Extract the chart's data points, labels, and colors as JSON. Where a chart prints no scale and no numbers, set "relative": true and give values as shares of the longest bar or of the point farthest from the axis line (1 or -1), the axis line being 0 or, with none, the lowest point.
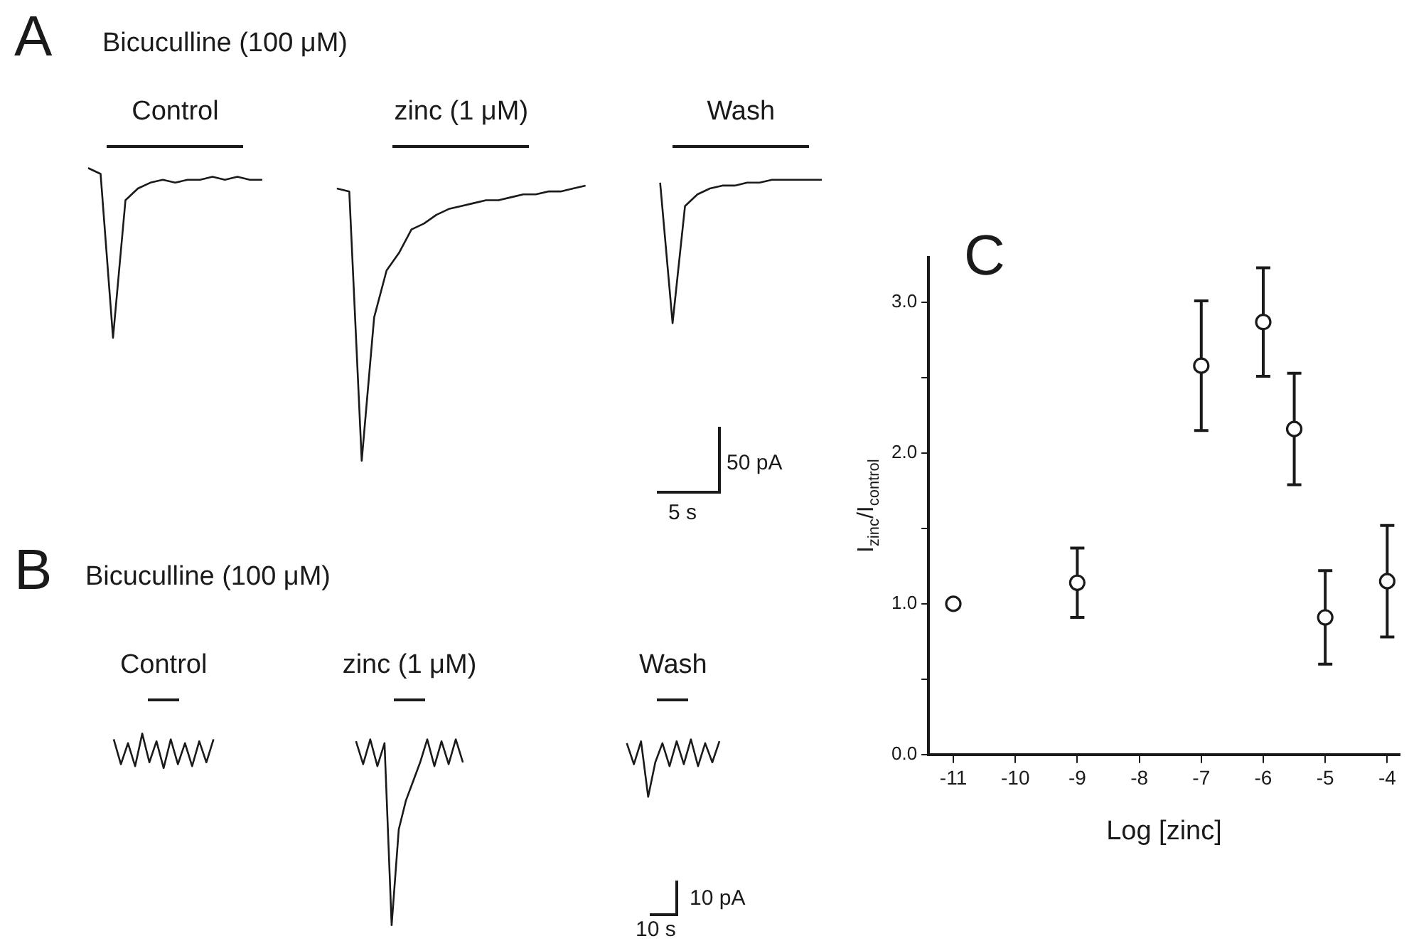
{
  "chart_data": [
    {
      "type": "line",
      "title": "A",
      "subtitle": "Bicuculline (100 μM)",
      "relative": true,
      "marker": "none",
      "annotations": [
        "50 pA",
        "5 s"
      ],
      "categories": [
        null,
        null,
        null,
        null,
        null,
        null,
        null,
        null,
        null,
        null,
        null,
        null,
        null,
        null,
        null,
        null,
        null,
        null,
        null,
        null,
        null,
        null,
        null,
        null,
        null,
        null,
        null,
        null,
        null,
        null,
        null,
        null,
        null,
        null,
        null,
        null,
        null,
        null,
        null,
        null,
        null,
        null,
        null,
        null,
        null,
        null,
        null,
        null,
        null,
        null,
        null,
        null,
        null,
        null,
        null,
        null,
        null,
        null,
        null,
        null
      ],
      "series": [
        {
          "name": "Control",
          "color": "#1a1a1a",
          "values": [
            1.0,
            0.98,
            0.42,
            0.89,
            0.93,
            0.95,
            0.96,
            0.95,
            0.96,
            0.96,
            0.97,
            0.96,
            0.97,
            0.96,
            0.96,
            null,
            null,
            null,
            null,
            null,
            null,
            null,
            null,
            null,
            null,
            null,
            null,
            null,
            null,
            null,
            null,
            null,
            null,
            null,
            null,
            null,
            null,
            null,
            null,
            null,
            null,
            null,
            null,
            null,
            null,
            null,
            null,
            null,
            null,
            null,
            null,
            null,
            null,
            null,
            null,
            null,
            null,
            null,
            null,
            null
          ]
        },
        {
          "name": "zinc (1 μM)",
          "color": "#1a1a1a",
          "values": [
            null,
            null,
            null,
            null,
            null,
            null,
            null,
            null,
            null,
            null,
            null,
            null,
            null,
            null,
            null,
            null,
            null,
            null,
            null,
            null,
            0.93,
            0.92,
            0.0,
            0.49,
            0.65,
            0.71,
            0.79,
            0.81,
            0.84,
            0.86,
            0.87,
            0.88,
            0.89,
            0.89,
            0.9,
            0.91,
            0.91,
            0.92,
            0.92,
            0.93,
            0.94,
            null,
            null,
            null,
            null,
            null,
            null,
            null,
            null,
            null,
            null,
            null,
            null,
            null,
            null,
            null,
            null,
            null,
            null,
            null
          ]
        },
        {
          "name": "Wash",
          "color": "#1a1a1a",
          "values": [
            null,
            null,
            null,
            null,
            null,
            null,
            null,
            null,
            null,
            null,
            null,
            null,
            null,
            null,
            null,
            null,
            null,
            null,
            null,
            null,
            null,
            null,
            null,
            null,
            null,
            null,
            null,
            null,
            null,
            null,
            null,
            null,
            null,
            null,
            null,
            null,
            null,
            null,
            null,
            null,
            null,
            null,
            null,
            null,
            null,
            null,
            0.95,
            0.47,
            0.87,
            0.91,
            0.93,
            0.94,
            0.94,
            0.95,
            0.95,
            0.96,
            0.96,
            0.96,
            0.96,
            0.96
          ]
        }
      ]
    },
    {
      "type": "line",
      "title": "B",
      "subtitle": "Bicuculline (100 μM)",
      "relative": true,
      "marker": "none",
      "annotations": [
        "10 pA",
        "10 s"
      ],
      "categories": [
        null,
        null,
        null,
        null,
        null,
        null,
        null,
        null,
        null,
        null,
        null,
        null,
        null,
        null,
        null,
        null,
        null,
        null,
        null,
        null,
        null,
        null,
        null,
        null,
        null,
        null,
        null,
        null,
        null,
        null,
        null,
        null,
        null,
        null,
        null,
        null,
        null,
        null,
        null,
        null,
        null,
        null,
        null,
        null,
        null,
        null,
        null,
        null,
        null,
        null,
        null,
        null,
        null,
        null,
        null,
        null,
        null,
        null,
        null,
        null,
        null,
        null,
        null,
        null,
        null,
        null,
        null,
        null,
        null,
        null,
        null,
        null,
        null,
        null,
        null,
        null,
        null,
        null,
        null,
        null,
        null,
        null,
        null,
        null,
        null,
        null
      ],
      "series": [
        {
          "name": "Control",
          "color": "#1a1a1a",
          "values": [
            0.97,
            0.84,
            0.95,
            0.83,
            1.0,
            0.85,
            0.96,
            0.82,
            0.97,
            0.84,
            0.95,
            0.83,
            0.96,
            0.85,
            0.97,
            null,
            null,
            null,
            null,
            null,
            null,
            null,
            null,
            null,
            null,
            null,
            null,
            null,
            null,
            null,
            null,
            null,
            null,
            null,
            null,
            null,
            null,
            null,
            null,
            null,
            null,
            null,
            null,
            null,
            null,
            null,
            null,
            null,
            null,
            null,
            null,
            null,
            null,
            null,
            null,
            null,
            null,
            null,
            null,
            null,
            null,
            null,
            null,
            null,
            null,
            null,
            null,
            null,
            null,
            null,
            null,
            null,
            null,
            null,
            null,
            null,
            null,
            null,
            null,
            null,
            null,
            null,
            null,
            null,
            null,
            null
          ]
        },
        {
          "name": "zinc (1 μM)",
          "color": "#1a1a1a",
          "values": [
            null,
            null,
            null,
            null,
            null,
            null,
            null,
            null,
            null,
            null,
            null,
            null,
            null,
            null,
            null,
            null,
            null,
            null,
            null,
            null,
            null,
            null,
            null,
            null,
            null,
            null,
            null,
            null,
            null,
            null,
            null,
            null,
            null,
            null,
            0.96,
            0.84,
            0.97,
            0.83,
            0.95,
            0.0,
            0.5,
            0.65,
            0.75,
            0.85,
            0.97,
            0.83,
            0.96,
            0.84,
            0.97,
            0.85,
            null,
            null,
            null,
            null,
            null,
            null,
            null,
            null,
            null,
            null,
            null,
            null,
            null,
            null,
            null,
            null,
            null,
            null,
            null,
            null,
            null,
            null,
            null,
            null,
            null,
            null,
            null,
            null,
            null,
            null,
            null,
            null,
            null,
            null,
            null,
            null
          ]
        },
        {
          "name": "Wash",
          "color": "#1a1a1a",
          "values": [
            null,
            null,
            null,
            null,
            null,
            null,
            null,
            null,
            null,
            null,
            null,
            null,
            null,
            null,
            null,
            null,
            null,
            null,
            null,
            null,
            null,
            null,
            null,
            null,
            null,
            null,
            null,
            null,
            null,
            null,
            null,
            null,
            null,
            null,
            null,
            null,
            null,
            null,
            null,
            null,
            null,
            null,
            null,
            null,
            null,
            null,
            null,
            null,
            null,
            null,
            null,
            null,
            null,
            null,
            null,
            null,
            null,
            null,
            null,
            null,
            null,
            null,
            null,
            null,
            null,
            null,
            null,
            null,
            null,
            null,
            null,
            null,
            0.95,
            0.84,
            0.96,
            0.67,
            0.85,
            0.95,
            0.83,
            0.96,
            0.84,
            0.97,
            0.83,
            0.95,
            0.85,
            0.96
          ]
        }
      ]
    },
    {
      "type": "scatter",
      "title": "C",
      "xlabel": "Log [zinc]",
      "ylabel": "I$_{zinc}$/I$_{control}$",
      "marker": "circle",
      "color": "#1a1a1a",
      "x": [
        -11,
        -9,
        -7,
        -6,
        -5.5,
        -5,
        -4
      ],
      "values": [
        1.0,
        1.14,
        2.58,
        2.87,
        2.16,
        0.91,
        1.15
      ],
      "errors": [
        null,
        0.23,
        0.43,
        0.36,
        0.37,
        0.31,
        0.37
      ],
      "xlim": [
        -11.4,
        -3.8
      ],
      "xticks": [
        -11,
        -10,
        -9,
        -8,
        -7,
        -6,
        -5,
        -4
      ],
      "ylim": [
        0,
        3.3
      ],
      "yticks": [
        {
          "value": 0,
          "label": "0.0"
        },
        {
          "value": 0.5,
          "label": null
        },
        {
          "value": 1,
          "label": "1.0"
        },
        {
          "value": 1.5,
          "label": null
        },
        {
          "value": 2,
          "label": "2.0"
        },
        {
          "value": 2.5,
          "label": null
        },
        {
          "value": 3,
          "label": "3.0"
        }
      ]
    }
  ]
}
